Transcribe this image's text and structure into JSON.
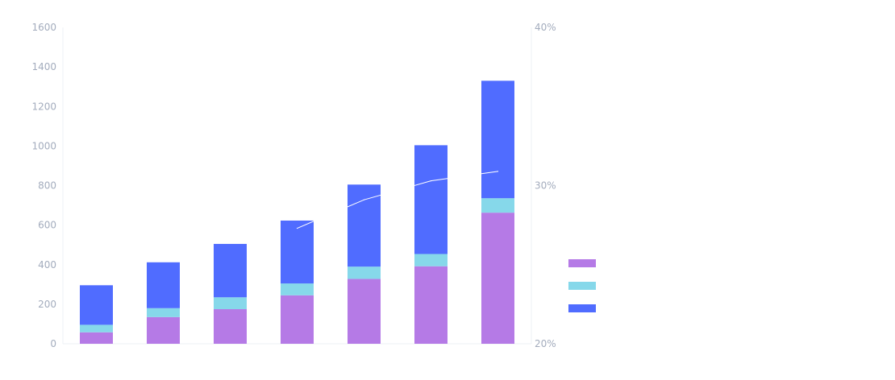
{
  "chart_data": {
    "type": "bar",
    "stacked": true,
    "categories": [
      "",
      "",
      "",
      "",
      "",
      "",
      ""
    ],
    "series": [
      {
        "values": [
          58,
          135,
          175,
          245,
          328,
          392,
          663
        ],
        "color": "#b57ae6"
      },
      {
        "values": [
          38,
          45,
          60,
          60,
          62,
          62,
          73
        ],
        "color": "#86d8ea"
      },
      {
        "values": [
          200,
          232,
          270,
          318,
          415,
          550,
          594
        ],
        "color": "#506cff"
      }
    ],
    "line": {
      "values": [
        null,
        null,
        null,
        27.3,
        29.1,
        30.3,
        30.9
      ],
      "color": "#ffffff",
      "axis": "right"
    },
    "ylim": [
      0,
      1600
    ],
    "yticks": [
      "0",
      "200",
      "400",
      "600",
      "800",
      "1000",
      "1200",
      "1400",
      "1600"
    ],
    "y2lim": [
      20,
      40
    ],
    "y2ticks": [
      "20%",
      "30%",
      "40%"
    ],
    "legend": {
      "position": "right"
    },
    "grid": false
  }
}
